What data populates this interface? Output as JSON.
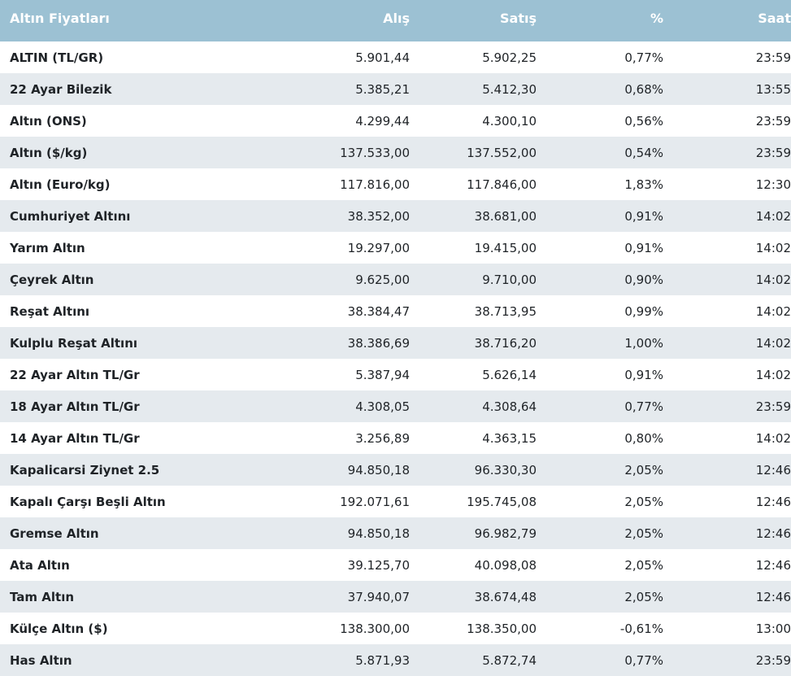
{
  "table": {
    "headers": {
      "name": "Altın Fiyatları",
      "alis": "Alış",
      "satis": "Satış",
      "pct": "%",
      "saat": "Saat"
    },
    "rows": [
      {
        "name": "ALTIN (TL/GR)",
        "alis": "5.901,44",
        "satis": "5.902,25",
        "pct": "0,77%",
        "saat": "23:59"
      },
      {
        "name": "22 Ayar Bilezik",
        "alis": "5.385,21",
        "satis": "5.412,30",
        "pct": "0,68%",
        "saat": "13:55"
      },
      {
        "name": "Altın (ONS)",
        "alis": "4.299,44",
        "satis": "4.300,10",
        "pct": "0,56%",
        "saat": "23:59"
      },
      {
        "name": "Altın ($/kg)",
        "alis": "137.533,00",
        "satis": "137.552,00",
        "pct": "0,54%",
        "saat": "23:59"
      },
      {
        "name": "Altın (Euro/kg)",
        "alis": "117.816,00",
        "satis": "117.846,00",
        "pct": "1,83%",
        "saat": "12:30"
      },
      {
        "name": "Cumhuriyet Altını",
        "alis": "38.352,00",
        "satis": "38.681,00",
        "pct": "0,91%",
        "saat": "14:02"
      },
      {
        "name": "Yarım Altın",
        "alis": "19.297,00",
        "satis": "19.415,00",
        "pct": "0,91%",
        "saat": "14:02"
      },
      {
        "name": "Çeyrek Altın",
        "alis": "9.625,00",
        "satis": "9.710,00",
        "pct": "0,90%",
        "saat": "14:02"
      },
      {
        "name": "Reşat Altını",
        "alis": "38.384,47",
        "satis": "38.713,95",
        "pct": "0,99%",
        "saat": "14:02"
      },
      {
        "name": "Kulplu Reşat Altını",
        "alis": "38.386,69",
        "satis": "38.716,20",
        "pct": "1,00%",
        "saat": "14:02"
      },
      {
        "name": "22 Ayar Altın TL/Gr",
        "alis": "5.387,94",
        "satis": "5.626,14",
        "pct": "0,91%",
        "saat": "14:02"
      },
      {
        "name": "18 Ayar Altın TL/Gr",
        "alis": "4.308,05",
        "satis": "4.308,64",
        "pct": "0,77%",
        "saat": "23:59"
      },
      {
        "name": "14 Ayar Altın TL/Gr",
        "alis": "3.256,89",
        "satis": "4.363,15",
        "pct": "0,80%",
        "saat": "14:02"
      },
      {
        "name": "Kapalicarsi Ziynet 2.5",
        "alis": "94.850,18",
        "satis": "96.330,30",
        "pct": "2,05%",
        "saat": "12:46"
      },
      {
        "name": "Kapalı Çarşı Beşli Altın",
        "alis": "192.071,61",
        "satis": "195.745,08",
        "pct": "2,05%",
        "saat": "12:46"
      },
      {
        "name": "Gremse Altın",
        "alis": "94.850,18",
        "satis": "96.982,79",
        "pct": "2,05%",
        "saat": "12:46"
      },
      {
        "name": "Ata Altın",
        "alis": "39.125,70",
        "satis": "40.098,08",
        "pct": "2,05%",
        "saat": "12:46"
      },
      {
        "name": "Tam Altın",
        "alis": "37.940,07",
        "satis": "38.674,48",
        "pct": "2,05%",
        "saat": "12:46"
      },
      {
        "name": "Külçe Altın ($)",
        "alis": "138.300,00",
        "satis": "138.350,00",
        "pct": "-0,61%",
        "saat": "13:00"
      },
      {
        "name": "Has Altın",
        "alis": "5.871,93",
        "satis": "5.872,74",
        "pct": "0,77%",
        "saat": "23:59"
      }
    ]
  },
  "colors": {
    "header_bg": "#9cc1d3",
    "header_text": "#ffffff",
    "row_alt_bg": "#e5eaee",
    "text": "#1f2327"
  }
}
